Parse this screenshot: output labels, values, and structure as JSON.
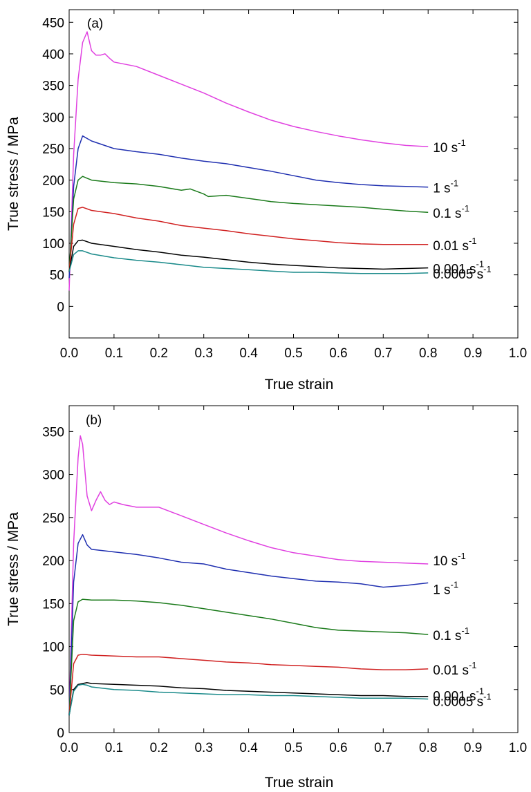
{
  "chart_data": [
    {
      "type": "line",
      "panel_label": "(a)",
      "xlabel": "True strain",
      "ylabel": "True stress / MPa",
      "xlim": [
        0.0,
        1.0
      ],
      "ylim": [
        -50,
        470
      ],
      "xticks": [
        "0.0",
        "0.1",
        "0.2",
        "0.3",
        "0.4",
        "0.5",
        "0.6",
        "0.7",
        "0.8",
        "0.9",
        "1.0"
      ],
      "yticks": [
        "0",
        "50",
        "100",
        "150",
        "200",
        "250",
        "300",
        "350",
        "400",
        "450"
      ],
      "grid": false,
      "series": [
        {
          "name": "10 s",
          "superscript": "-1",
          "color": "#e040e0",
          "x": [
            0.0,
            0.01,
            0.02,
            0.03,
            0.04,
            0.05,
            0.06,
            0.07,
            0.08,
            0.09,
            0.1,
            0.15,
            0.2,
            0.25,
            0.3,
            0.35,
            0.4,
            0.45,
            0.5,
            0.55,
            0.6,
            0.65,
            0.7,
            0.75,
            0.8
          ],
          "y": [
            25,
            240,
            360,
            418,
            435,
            405,
            398,
            398,
            400,
            393,
            387,
            380,
            366,
            352,
            338,
            322,
            308,
            295,
            285,
            277,
            270,
            264,
            259,
            255,
            253
          ]
        },
        {
          "name": "1 s",
          "superscript": "-1",
          "color": "#1f2fb0",
          "x": [
            0.0,
            0.01,
            0.02,
            0.03,
            0.05,
            0.1,
            0.15,
            0.2,
            0.25,
            0.3,
            0.35,
            0.4,
            0.45,
            0.5,
            0.55,
            0.6,
            0.65,
            0.7,
            0.75,
            0.8
          ],
          "y": [
            45,
            190,
            250,
            270,
            262,
            250,
            245,
            241,
            235,
            230,
            226,
            220,
            214,
            207,
            200,
            196,
            193,
            191,
            190,
            189
          ]
        },
        {
          "name": "0.1 s",
          "superscript": "-1",
          "color": "#1a7a1a",
          "x": [
            0.0,
            0.01,
            0.02,
            0.03,
            0.05,
            0.1,
            0.15,
            0.2,
            0.25,
            0.27,
            0.3,
            0.31,
            0.35,
            0.4,
            0.45,
            0.5,
            0.55,
            0.6,
            0.65,
            0.7,
            0.75,
            0.8
          ],
          "y": [
            55,
            170,
            200,
            206,
            200,
            196,
            194,
            190,
            184,
            186,
            178,
            174,
            176,
            171,
            166,
            163,
            161,
            159,
            157,
            154,
            151,
            149
          ]
        },
        {
          "name": "0.01 s",
          "superscript": "-1",
          "color": "#d02020",
          "x": [
            0.0,
            0.01,
            0.02,
            0.03,
            0.05,
            0.1,
            0.15,
            0.2,
            0.25,
            0.3,
            0.35,
            0.4,
            0.45,
            0.5,
            0.55,
            0.6,
            0.65,
            0.7,
            0.75,
            0.8
          ],
          "y": [
            55,
            130,
            155,
            157,
            152,
            147,
            140,
            135,
            128,
            124,
            120,
            115,
            111,
            107,
            104,
            101,
            99,
            98,
            98,
            98
          ]
        },
        {
          "name": "0.001 s",
          "superscript": "-1",
          "color": "#000000",
          "x": [
            0.0,
            0.01,
            0.02,
            0.03,
            0.05,
            0.1,
            0.15,
            0.2,
            0.25,
            0.3,
            0.35,
            0.4,
            0.45,
            0.5,
            0.55,
            0.6,
            0.65,
            0.7,
            0.75,
            0.8
          ],
          "y": [
            55,
            95,
            104,
            105,
            100,
            95,
            90,
            86,
            81,
            78,
            74,
            70,
            67,
            65,
            63,
            61,
            60,
            59,
            60,
            61
          ]
        },
        {
          "name": "0.0005 s",
          "superscript": "-1",
          "color": "#1a8a8a",
          "x": [
            0.0,
            0.01,
            0.02,
            0.03,
            0.05,
            0.1,
            0.15,
            0.2,
            0.25,
            0.3,
            0.35,
            0.4,
            0.45,
            0.5,
            0.55,
            0.6,
            0.65,
            0.7,
            0.75,
            0.8
          ],
          "y": [
            55,
            82,
            88,
            88,
            83,
            77,
            73,
            70,
            66,
            62,
            60,
            58,
            56,
            54,
            54,
            53,
            52,
            52,
            52,
            53
          ]
        }
      ]
    },
    {
      "type": "line",
      "panel_label": "(b)",
      "xlabel": "True strain",
      "ylabel": "True stress / MPa",
      "xlim": [
        0.0,
        1.0
      ],
      "ylim": [
        0,
        380
      ],
      "xticks": [
        "0.0",
        "0.1",
        "0.2",
        "0.3",
        "0.4",
        "0.5",
        "0.6",
        "0.7",
        "0.8",
        "0.9",
        "1.0"
      ],
      "yticks": [
        "0",
        "50",
        "100",
        "150",
        "200",
        "250",
        "300",
        "350"
      ],
      "grid": false,
      "series": [
        {
          "name": "10 s",
          "superscript": "-1",
          "color": "#e040e0",
          "x": [
            0.0,
            0.01,
            0.02,
            0.025,
            0.03,
            0.04,
            0.05,
            0.06,
            0.07,
            0.08,
            0.09,
            0.1,
            0.12,
            0.15,
            0.2,
            0.25,
            0.3,
            0.35,
            0.4,
            0.45,
            0.5,
            0.55,
            0.6,
            0.65,
            0.7,
            0.75,
            0.8
          ],
          "y": [
            20,
            220,
            320,
            345,
            335,
            275,
            258,
            270,
            280,
            270,
            265,
            268,
            265,
            262,
            262,
            252,
            242,
            232,
            223,
            215,
            209,
            205,
            201,
            199,
            198,
            197,
            196
          ]
        },
        {
          "name": "1 s",
          "superscript": "-1",
          "color": "#1f2fb0",
          "x": [
            0.0,
            0.01,
            0.02,
            0.03,
            0.04,
            0.05,
            0.1,
            0.15,
            0.2,
            0.25,
            0.3,
            0.35,
            0.4,
            0.45,
            0.5,
            0.55,
            0.6,
            0.65,
            0.7,
            0.75,
            0.8
          ],
          "y": [
            20,
            175,
            220,
            230,
            218,
            213,
            210,
            207,
            203,
            198,
            196,
            190,
            186,
            182,
            179,
            176,
            175,
            173,
            169,
            171,
            174
          ]
        },
        {
          "name": "0.1 s",
          "superscript": "-1",
          "color": "#1a7a1a",
          "x": [
            0.0,
            0.01,
            0.02,
            0.03,
            0.05,
            0.1,
            0.15,
            0.2,
            0.25,
            0.3,
            0.35,
            0.4,
            0.45,
            0.5,
            0.55,
            0.6,
            0.65,
            0.7,
            0.75,
            0.8
          ],
          "y": [
            20,
            130,
            152,
            155,
            154,
            154,
            153,
            151,
            148,
            144,
            140,
            136,
            132,
            127,
            122,
            119,
            118,
            117,
            116,
            114
          ]
        },
        {
          "name": "0.01 s",
          "superscript": "-1",
          "color": "#d02020",
          "x": [
            0.0,
            0.01,
            0.02,
            0.03,
            0.05,
            0.1,
            0.15,
            0.2,
            0.25,
            0.3,
            0.35,
            0.4,
            0.45,
            0.5,
            0.55,
            0.6,
            0.65,
            0.7,
            0.75,
            0.8
          ],
          "y": [
            20,
            80,
            90,
            91,
            90,
            89,
            88,
            88,
            86,
            84,
            82,
            81,
            79,
            78,
            77,
            76,
            74,
            73,
            73,
            74
          ]
        },
        {
          "name": "0.001 s",
          "superscript": "-1",
          "color": "#000000",
          "x": [
            0.0,
            0.01,
            0.02,
            0.03,
            0.04,
            0.05,
            0.1,
            0.15,
            0.2,
            0.25,
            0.3,
            0.35,
            0.4,
            0.45,
            0.5,
            0.55,
            0.6,
            0.65,
            0.7,
            0.75,
            0.8
          ],
          "y": [
            20,
            50,
            56,
            57,
            58,
            57,
            56,
            55,
            54,
            52,
            51,
            49,
            48,
            47,
            46,
            45,
            44,
            43,
            43,
            42,
            42
          ]
        },
        {
          "name": "0.0005 s",
          "superscript": "-1",
          "color": "#1a8a8a",
          "x": [
            0.0,
            0.01,
            0.02,
            0.03,
            0.04,
            0.05,
            0.1,
            0.15,
            0.2,
            0.25,
            0.3,
            0.35,
            0.4,
            0.45,
            0.5,
            0.55,
            0.6,
            0.65,
            0.7,
            0.75,
            0.8
          ],
          "y": [
            20,
            48,
            55,
            56,
            55,
            53,
            50,
            49,
            47,
            46,
            45,
            44,
            44,
            43,
            43,
            42,
            41,
            40,
            40,
            40,
            39
          ]
        }
      ]
    }
  ]
}
